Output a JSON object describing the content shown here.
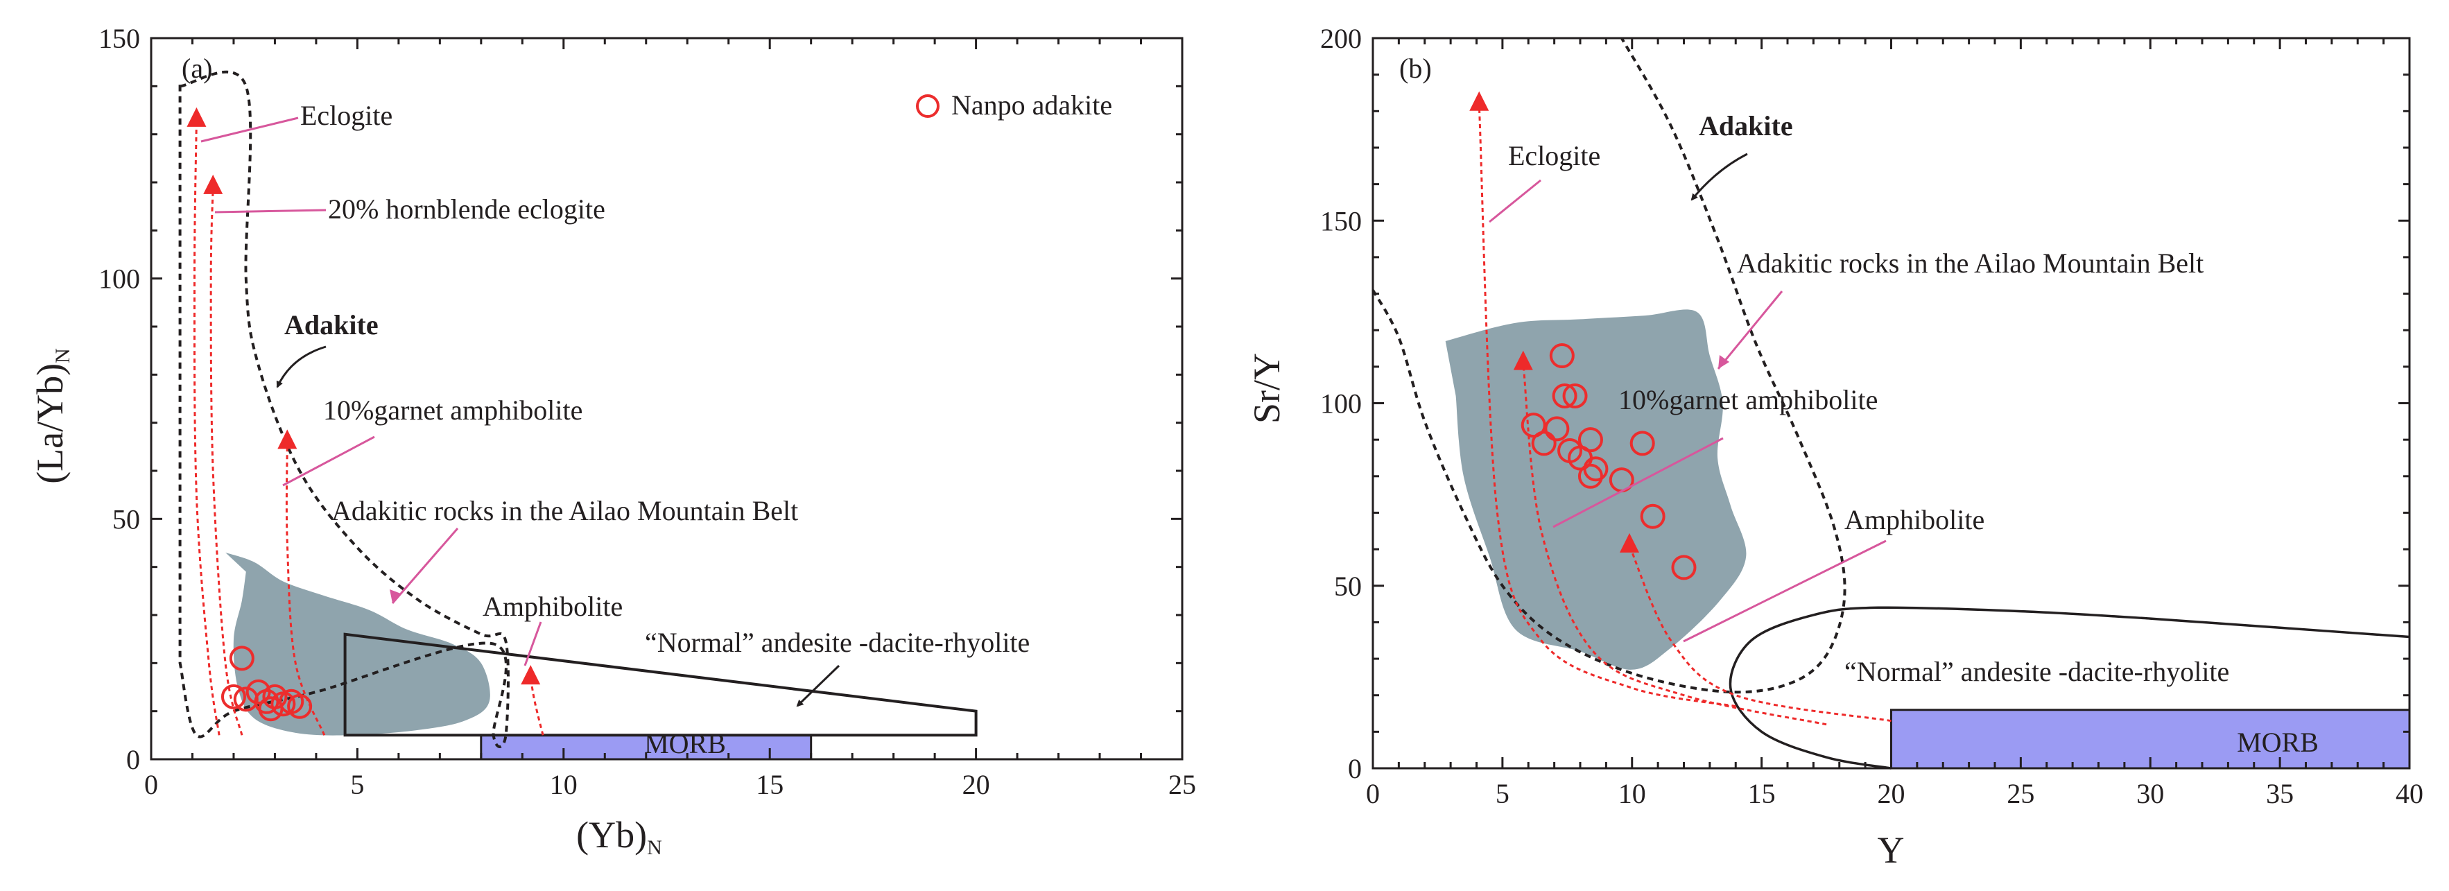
{
  "colors": {
    "field_fill": "#8fa4ad",
    "morb_fill": "#9b9bf3",
    "trend_red": "#ee2a2a",
    "pointer_pink": "#d7579c",
    "marker_red": "#ec2d2d",
    "ink": "#231f20"
  },
  "chart_data": [
    {
      "panel": "(a)",
      "type": "scatter",
      "xlabel": "(Yb)",
      "xlabel_sub": "N",
      "ylabel": "(La/Yb)",
      "ylabel_sub": "N",
      "xlim": [
        0,
        25
      ],
      "ylim": [
        0,
        150
      ],
      "xticks": [
        0,
        5,
        10,
        15,
        20,
        25
      ],
      "yticks": [
        0,
        50,
        100,
        150
      ],
      "legend": {
        "position": "top-right",
        "label": "Nanpo adakite",
        "marker": "open-circle"
      },
      "series": [
        {
          "name": "Nanpo adakite",
          "points": [
            [
              2.2,
              21
            ],
            [
              2.0,
              13
            ],
            [
              2.3,
              12.5
            ],
            [
              2.6,
              14
            ],
            [
              2.8,
              12
            ],
            [
              3.0,
              13
            ],
            [
              3.2,
              11.5
            ],
            [
              3.4,
              12
            ],
            [
              3.6,
              11
            ],
            [
              2.9,
              10.5
            ]
          ]
        }
      ],
      "fields": {
        "adakite_dashed": [
          [
            0.7,
            140
          ],
          [
            2.3,
            140
          ],
          [
            2.3,
            100
          ],
          [
            2.6,
            82
          ],
          [
            3.6,
            60
          ],
          [
            5,
            44
          ],
          [
            6.5,
            33
          ],
          [
            8.0,
            26
          ],
          [
            8.6,
            24.5
          ],
          [
            8.6,
            5
          ],
          [
            8.3,
            5
          ],
          [
            8.3,
            24
          ],
          [
            4,
            14
          ],
          [
            2,
            10
          ],
          [
            1.1,
            5
          ],
          [
            0.7,
            20
          ]
        ],
        "adakitic_rocks_ailao": [
          [
            1.8,
            43
          ],
          [
            2.5,
            41
          ],
          [
            3.2,
            37
          ],
          [
            4.2,
            34
          ],
          [
            5.3,
            31
          ],
          [
            6.2,
            27
          ],
          [
            7.3,
            24
          ],
          [
            8.0,
            20
          ],
          [
            8.2,
            12
          ],
          [
            7.6,
            8
          ],
          [
            6.4,
            6
          ],
          [
            4.8,
            5
          ],
          [
            3.5,
            5.5
          ],
          [
            2.5,
            8.5
          ],
          [
            2.1,
            15
          ],
          [
            2.0,
            25
          ],
          [
            2.2,
            33
          ],
          [
            2.3,
            39
          ]
        ],
        "normal_andesite_dacite_rhyolite": [
          [
            4.7,
            5
          ],
          [
            4.7,
            26
          ],
          [
            20,
            10
          ],
          [
            20,
            5
          ]
        ],
        "morb": [
          [
            8,
            0
          ],
          [
            16,
            0
          ],
          [
            16,
            5
          ],
          [
            8,
            5
          ]
        ]
      },
      "trends": [
        {
          "label": "Eclogite",
          "path": [
            [
              1.65,
              5
            ],
            [
              1.4,
              20
            ],
            [
              1.1,
              55
            ],
            [
              1.05,
              100
            ],
            [
              1.1,
              133
            ]
          ],
          "arrow_at": [
            1.1,
            133
          ]
        },
        {
          "label": "20% hornblende eclogite",
          "path": [
            [
              2.2,
              5
            ],
            [
              1.8,
              20
            ],
            [
              1.5,
              60
            ],
            [
              1.45,
              100
            ],
            [
              1.5,
              119
            ]
          ],
          "arrow_at": [
            1.5,
            119
          ]
        },
        {
          "label": "10%garnet amphibolite",
          "path": [
            [
              4.2,
              5
            ],
            [
              3.5,
              20
            ],
            [
              3.3,
              45
            ],
            [
              3.3,
              66
            ]
          ],
          "arrow_at": [
            3.3,
            66
          ]
        },
        {
          "label": "Amphibolite",
          "path": [
            [
              9.5,
              5
            ],
            [
              9.3,
              12
            ],
            [
              9.2,
              17
            ]
          ],
          "arrow_at": [
            9.2,
            17
          ]
        }
      ],
      "annotations": {
        "panel_label": "(a)",
        "eclogite": "Eclogite",
        "hornblende_eclogite": "20% hornblende eclogite",
        "adakite": "Adakite",
        "garnet_amphibolite": "10%garnet amphibolite",
        "ailao": "Adakitic rocks in the Ailao Mountain Belt",
        "amphibolite": "Amphibolite",
        "normal_adr": "“Normal” andesite -dacite-rhyolite",
        "morb": "MORB"
      }
    },
    {
      "panel": "(b)",
      "type": "scatter",
      "xlabel": "Y",
      "ylabel": "Sr/Y",
      "xlim": [
        0,
        40
      ],
      "ylim": [
        0,
        200
      ],
      "xticks": [
        0,
        5,
        10,
        15,
        20,
        25,
        30,
        35,
        40
      ],
      "yticks": [
        0,
        50,
        100,
        150,
        200
      ],
      "series": [
        {
          "name": "Nanpo adakite",
          "points": [
            [
              7.3,
              113
            ],
            [
              7.4,
              102
            ],
            [
              7.8,
              102
            ],
            [
              6.2,
              94
            ],
            [
              7.1,
              93
            ],
            [
              6.6,
              89
            ],
            [
              7.6,
              87
            ],
            [
              8.0,
              85
            ],
            [
              8.4,
              90
            ],
            [
              10.4,
              89
            ],
            [
              8.6,
              82
            ],
            [
              8.4,
              80
            ],
            [
              9.6,
              79
            ],
            [
              10.8,
              69
            ],
            [
              12.0,
              55
            ]
          ]
        }
      ],
      "fields": {
        "adakite_dashed": [
          [
            0,
            131
          ],
          [
            1.0,
            118
          ],
          [
            2.0,
            95
          ],
          [
            3.5,
            70
          ],
          [
            5.0,
            50
          ],
          [
            7.0,
            36
          ],
          [
            10.0,
            26
          ],
          [
            13.5,
            21
          ],
          [
            16.0,
            23
          ],
          [
            17.5,
            31
          ],
          [
            18.2,
            47
          ],
          [
            17.8,
            66
          ],
          [
            16.4,
            91
          ],
          [
            14.8,
            116
          ],
          [
            13.3,
            145
          ],
          [
            11.5,
            176
          ],
          [
            9.6,
            200
          ]
        ],
        "adakitic_rocks_ailao": [
          [
            2.8,
            117
          ],
          [
            5.5,
            122
          ],
          [
            8.0,
            123
          ],
          [
            10.5,
            124
          ],
          [
            12.5,
            125
          ],
          [
            13.0,
            113
          ],
          [
            13.5,
            100
          ],
          [
            13.3,
            85
          ],
          [
            13.8,
            72
          ],
          [
            14.4,
            58
          ],
          [
            13.4,
            46
          ],
          [
            11.5,
            33
          ],
          [
            10.0,
            27
          ],
          [
            8.0,
            32
          ],
          [
            5.5,
            38
          ],
          [
            4.5,
            58
          ],
          [
            3.5,
            80
          ],
          [
            3.2,
            102
          ]
        ],
        "normal_adr_curve": [
          [
            20,
            0
          ],
          [
            17.5,
            3
          ],
          [
            15.0,
            10
          ],
          [
            13.8,
            22
          ],
          [
            14.6,
            35
          ],
          [
            17.0,
            42
          ],
          [
            19.5,
            44
          ],
          [
            25,
            43
          ],
          [
            30,
            41
          ],
          [
            35,
            38.5
          ],
          [
            40,
            36
          ]
        ],
        "morb": [
          [
            20,
            0
          ],
          [
            40,
            0
          ],
          [
            40,
            16
          ],
          [
            20,
            16
          ]
        ]
      },
      "trends": [
        {
          "label": "Eclogite",
          "path": [
            [
              14,
              17
            ],
            [
              10,
              22
            ],
            [
              6.5,
              35
            ],
            [
              4.8,
              70
            ],
            [
              4.1,
              182
            ]
          ],
          "arrow_at": [
            4.1,
            182
          ]
        },
        {
          "label": "10%garnet amphibolite",
          "path": [
            [
              17.5,
              12
            ],
            [
              12,
              20
            ],
            [
              8.5,
              32
            ],
            [
              6.5,
              65
            ],
            [
              5.8,
              111
            ]
          ],
          "arrow_at": [
            5.8,
            111
          ]
        },
        {
          "label": "Amphibolite",
          "path": [
            [
              20,
              13
            ],
            [
              14,
              20
            ],
            [
              11.5,
              35
            ],
            [
              9.9,
              61
            ]
          ],
          "arrow_at": [
            9.9,
            61
          ]
        }
      ],
      "annotations": {
        "panel_label": "(b)",
        "adakite": "Adakite",
        "eclogite": "Eclogite",
        "ailao": "Adakitic rocks in the Ailao Mountain Belt",
        "garnet_amphibolite": "10%garnet amphibolite",
        "amphibolite": "Amphibolite",
        "normal_adr": "“Normal” andesite -dacite-rhyolite",
        "morb": "MORB"
      }
    }
  ]
}
